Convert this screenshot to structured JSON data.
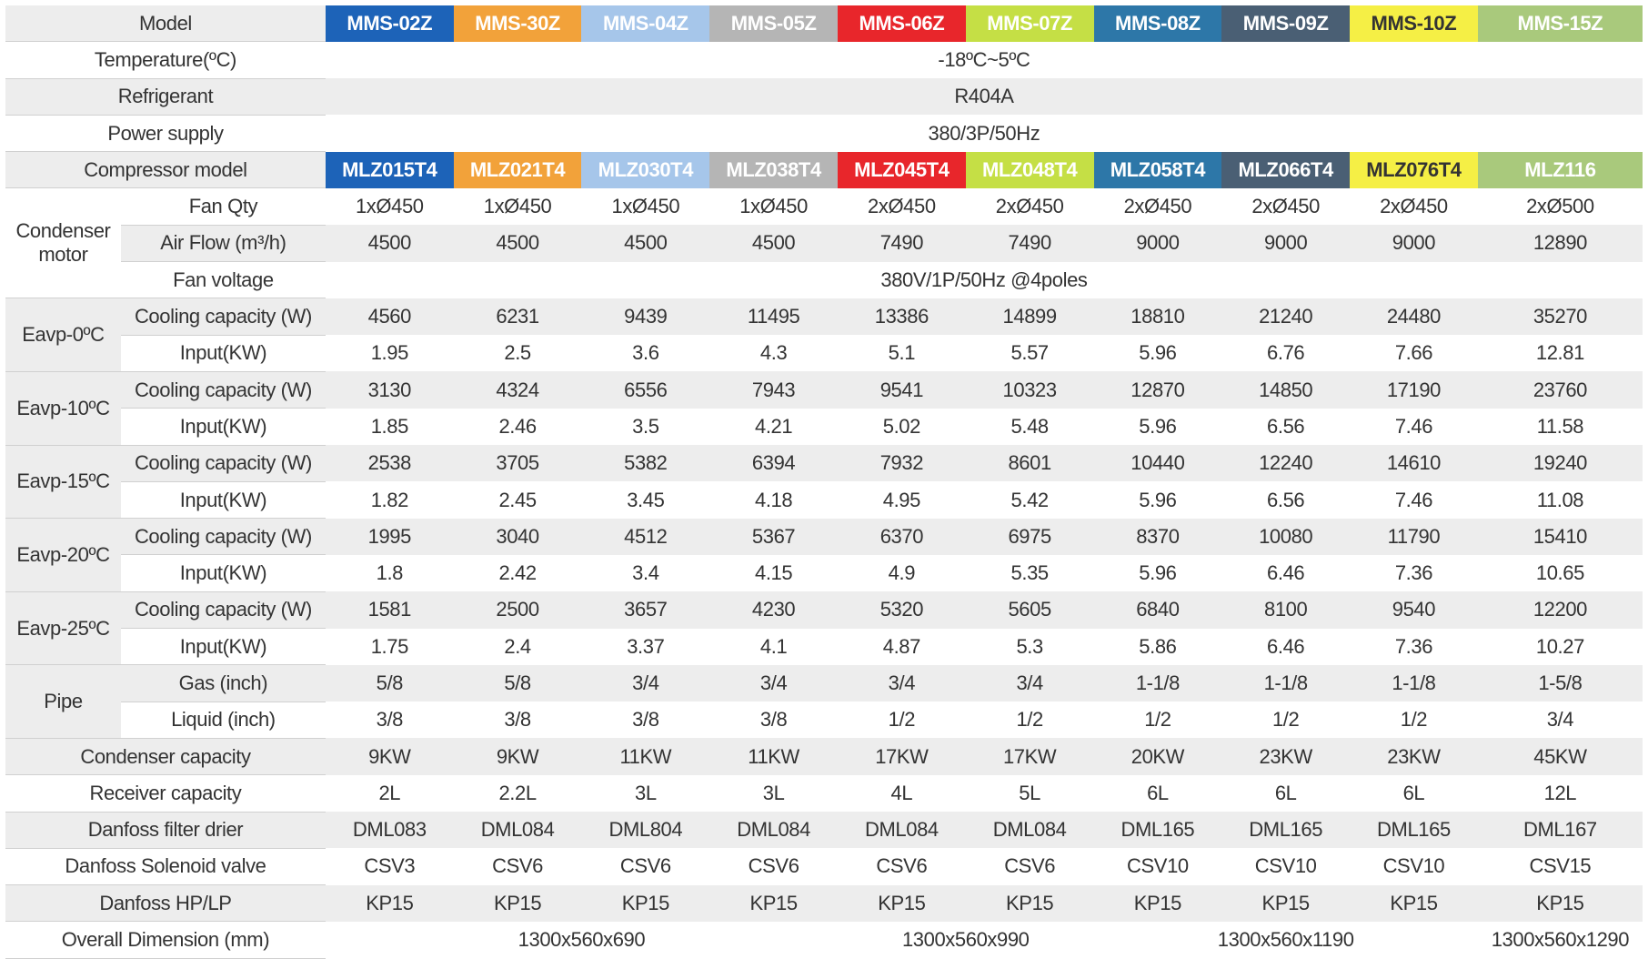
{
  "columns_colors": {
    "bg": [
      "#1d63b8",
      "#f2a23a",
      "#a6c6ea",
      "#b5b5b5",
      "#e8262b",
      "#c5df45",
      "#2d77a8",
      "#4a5f74",
      "#f5ef45",
      "#a9c97c"
    ],
    "fg": [
      "#ffffff",
      "#ffffff",
      "#ffffff",
      "#ffffff",
      "#ffffff",
      "#ffffff",
      "#ffffff",
      "#ffffff",
      "#333333",
      "#ffffff"
    ]
  },
  "table": {
    "model_label": "Model",
    "models": [
      "MMS-02Z",
      "MMS-30Z",
      "MMS-04Z",
      "MMS-05Z",
      "MMS-06Z",
      "MMS-07Z",
      "MMS-08Z",
      "MMS-09Z",
      "MMS-10Z",
      "MMS-15Z"
    ],
    "temperature": {
      "label": "Temperature(ºC)",
      "value": "-18ºC~5ºC"
    },
    "refrigerant": {
      "label": "Refrigerant",
      "value": "R404A"
    },
    "power_supply": {
      "label": "Power supply",
      "value": "380/3P/50Hz"
    },
    "compressor": {
      "label": "Compressor model",
      "values": [
        "MLZ015T4",
        "MLZ021T4",
        "MLZ030T4",
        "MLZ038T4",
        "MLZ045T4",
        "MLZ048T4",
        "MLZ058T4",
        "MLZ066T4",
        "MLZ076T4",
        "MLZ116"
      ]
    },
    "condenser_motor": {
      "label": "Condenser motor",
      "fan_qty": {
        "label": "Fan Qty",
        "values": [
          "1xØ450",
          "1xØ450",
          "1xØ450",
          "1xØ450",
          "2xØ450",
          "2xØ450",
          "2xØ450",
          "2xØ450",
          "2xØ450",
          "2xØ500"
        ]
      },
      "air_flow": {
        "label": "Air Flow (m³/h)",
        "values": [
          "4500",
          "4500",
          "4500",
          "4500",
          "7490",
          "7490",
          "9000",
          "9000",
          "9000",
          "12890"
        ]
      },
      "fan_voltage": {
        "label": "Fan voltage",
        "value": "380V/1P/50Hz @4poles"
      }
    },
    "evap": [
      {
        "label": "Eavp-0ºC",
        "cooling_label": "Cooling capacity (W)",
        "input_label": "Input(KW)",
        "cooling": [
          "4560",
          "6231",
          "9439",
          "11495",
          "13386",
          "14899",
          "18810",
          "21240",
          "24480",
          "35270"
        ],
        "input": [
          "1.95",
          "2.5",
          "3.6",
          "4.3",
          "5.1",
          "5.57",
          "5.96",
          "6.76",
          "7.66",
          "12.81"
        ]
      },
      {
        "label": "Eavp-10ºC",
        "cooling_label": "Cooling capacity (W)",
        "input_label": "Input(KW)",
        "cooling": [
          "3130",
          "4324",
          "6556",
          "7943",
          "9541",
          "10323",
          "12870",
          "14850",
          "17190",
          "23760"
        ],
        "input": [
          "1.85",
          "2.46",
          "3.5",
          "4.21",
          "5.02",
          "5.48",
          "5.96",
          "6.56",
          "7.46",
          "11.58"
        ]
      },
      {
        "label": "Eavp-15ºC",
        "cooling_label": "Cooling capacity (W)",
        "input_label": "Input(KW)",
        "cooling": [
          "2538",
          "3705",
          "5382",
          "6394",
          "7932",
          "8601",
          "10440",
          "12240",
          "14610",
          "19240"
        ],
        "input": [
          "1.82",
          "2.45",
          "3.45",
          "4.18",
          "4.95",
          "5.42",
          "5.96",
          "6.56",
          "7.46",
          "11.08"
        ]
      },
      {
        "label": "Eavp-20ºC",
        "cooling_label": "Cooling capacity (W)",
        "input_label": "Input(KW)",
        "cooling": [
          "1995",
          "3040",
          "4512",
          "5367",
          "6370",
          "6975",
          "8370",
          "10080",
          "11790",
          "15410"
        ],
        "input": [
          "1.8",
          "2.42",
          "3.4",
          "4.15",
          "4.9",
          "5.35",
          "5.96",
          "6.46",
          "7.36",
          "10.65"
        ]
      },
      {
        "label": "Eavp-25ºC",
        "cooling_label": "Cooling capacity (W)",
        "input_label": "Input(KW)",
        "cooling": [
          "1581",
          "2500",
          "3657",
          "4230",
          "5320",
          "5605",
          "6840",
          "8100",
          "9540",
          "12200"
        ],
        "input": [
          "1.75",
          "2.4",
          "3.37",
          "4.1",
          "4.87",
          "5.3",
          "5.86",
          "6.46",
          "7.36",
          "10.27"
        ]
      }
    ],
    "pipe": {
      "label": "Pipe",
      "gas": {
        "label": "Gas (inch)",
        "values": [
          "5/8",
          "5/8",
          "3/4",
          "3/4",
          "3/4",
          "3/4",
          "1-1/8",
          "1-1/8",
          "1-1/8",
          "1-5/8"
        ]
      },
      "liquid": {
        "label": "Liquid (inch)",
        "values": [
          "3/8",
          "3/8",
          "3/8",
          "3/8",
          "1/2",
          "1/2",
          "1/2",
          "1/2",
          "1/2",
          "3/4"
        ]
      }
    },
    "simple_rows": [
      {
        "label": "Condenser capacity",
        "values": [
          "9KW",
          "9KW",
          "11KW",
          "11KW",
          "17KW",
          "17KW",
          "20KW",
          "23KW",
          "23KW",
          "45KW"
        ]
      },
      {
        "label": "Receiver capacity",
        "values": [
          "2L",
          "2.2L",
          "3L",
          "3L",
          "4L",
          "5L",
          "6L",
          "6L",
          "6L",
          "12L"
        ]
      },
      {
        "label": "Danfoss filter drier",
        "values": [
          "DML083",
          "DML084",
          "DML804",
          "DML084",
          "DML084",
          "DML084",
          "DML165",
          "DML165",
          "DML165",
          "DML167"
        ]
      },
      {
        "label": "Danfoss Solenoid valve",
        "values": [
          "CSV3",
          "CSV6",
          "CSV6",
          "CSV6",
          "CSV6",
          "CSV6",
          "CSV10",
          "CSV10",
          "CSV10",
          "CSV15"
        ]
      },
      {
        "label": "Danfoss HP/LP",
        "values": [
          "KP15",
          "KP15",
          "KP15",
          "KP15",
          "KP15",
          "KP15",
          "KP15",
          "KP15",
          "KP15",
          "KP15"
        ]
      }
    ],
    "overall_dimension": {
      "label": "Overall Dimension (mm)",
      "values": [
        "1300x560x690",
        "1300x560x990",
        "1300x560x1190",
        "1300x560x1290"
      ]
    }
  }
}
